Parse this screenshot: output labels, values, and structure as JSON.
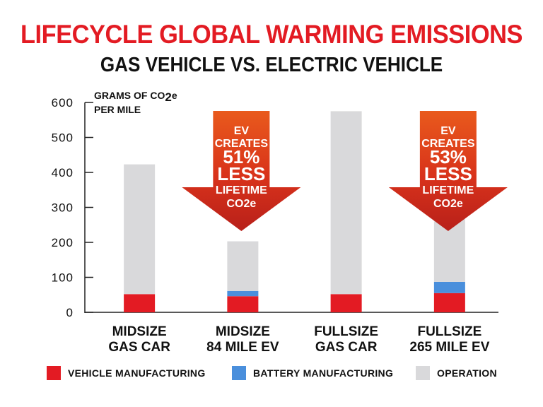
{
  "title": "LIFECYCLE GLOBAL WARMING EMISSIONS",
  "subtitle": "GAS VEHICLE VS. ELECTRIC VEHICLE",
  "chart_data": {
    "type": "bar",
    "stacked": true,
    "ylabel_line1": "GRAMS OF CO",
    "ylabel_sub": "2",
    "ylabel_sup": "e",
    "ylabel_line2": "PER MILE",
    "ylim": [
      0,
      600
    ],
    "yticks": [
      0,
      100,
      200,
      300,
      400,
      500,
      600
    ],
    "categories": [
      [
        "MIDSIZE",
        "GAS CAR"
      ],
      [
        "MIDSIZE",
        "84 MILE EV"
      ],
      [
        "FULLSIZE",
        "GAS CAR"
      ],
      [
        "FULLSIZE",
        "265 MILE EV"
      ]
    ],
    "series": [
      {
        "name": "VEHICLE MANUFACTURING",
        "color": "#e31b23",
        "values": [
          52,
          46,
          52,
          55
        ]
      },
      {
        "name": "BATTERY MANUFACTURING",
        "color": "#4a8fdc",
        "values": [
          0,
          15,
          0,
          32
        ]
      },
      {
        "name": "OPERATION",
        "color": "#d9d9db",
        "values": [
          371,
          142,
          523,
          182
        ]
      }
    ],
    "annotations": [
      {
        "category_index": 1,
        "lines": [
          "EV",
          "CREATES",
          "51%",
          "LESS",
          "LIFETIME",
          "CO2e"
        ]
      },
      {
        "category_index": 3,
        "lines": [
          "EV",
          "CREATES",
          "53%",
          "LESS",
          "LIFETIME",
          "CO2e"
        ]
      }
    ]
  }
}
